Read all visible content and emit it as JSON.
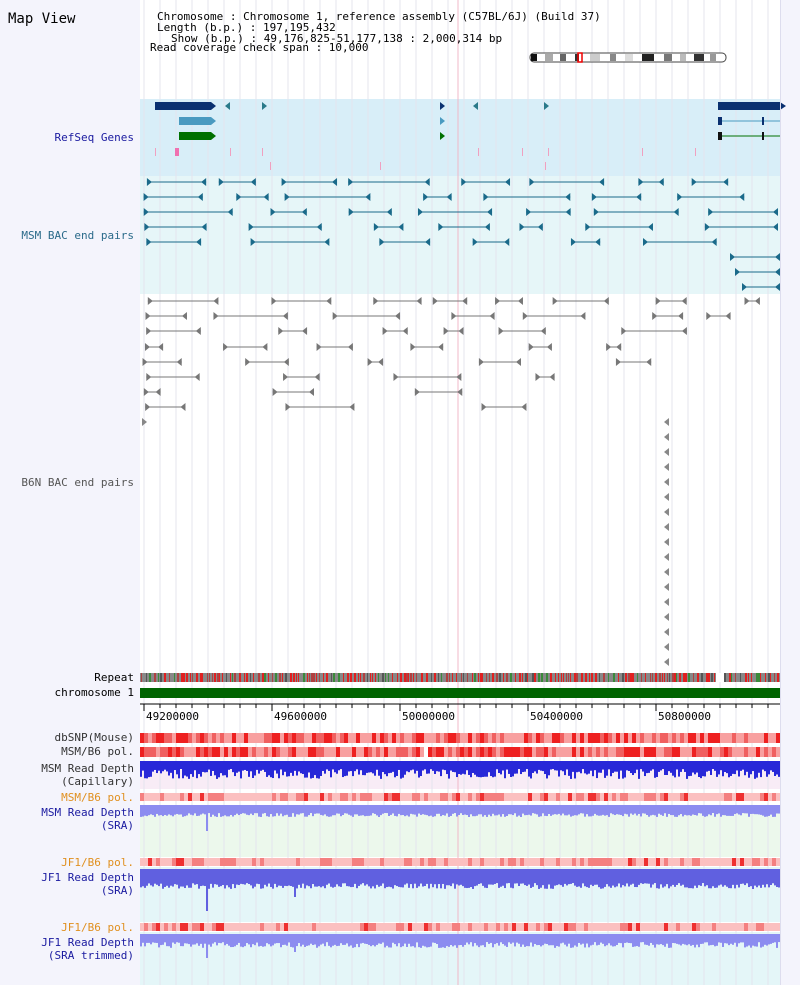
{
  "title": "Map View",
  "header": {
    "chromosome_line": "Chromosome    : Chromosome 1, reference assembly (C57BL/6J) (Build 37)",
    "length_line": "Length (b.p.) : 197,195,432",
    "show_line": "Show (b.p.) : 49,176,825-51,177,138 : 2,000,314 bp",
    "coverage_line": "Read coverage check span : 10,000"
  },
  "tracks": {
    "refseq": "RefSeq Genes",
    "msm_bac": "MSM BAC end pairs",
    "b6n_bac": "B6N BAC end pairs",
    "repeat": "Repeat",
    "chromosome": "chromosome 1",
    "dbsnp": "dbSNP(Mouse)",
    "msm_b6_pol_1": "MSM/B6 pol.",
    "msm_depth_cap_1": "MSM Read Depth",
    "msm_depth_cap_2": "(Capillary)",
    "msm_b6_pol_2": "MSM/B6 pol.",
    "msm_depth_sra_1": "MSM Read Depth",
    "msm_depth_sra_2": "(SRA)",
    "jf1_b6_pol_1": "JF1/B6 pol.",
    "jf1_depth_sra_1": "JF1 Read Depth",
    "jf1_depth_sra_2": "(SRA)",
    "jf1_b6_pol_2": "JF1/B6 pol.",
    "jf1_depth_trim_1": "JF1 Read Depth",
    "jf1_depth_trim_2": "(SRA trimmed)"
  },
  "axis_ticks": [
    "49200000",
    "49600000",
    "50000000",
    "50400000",
    "50800000"
  ],
  "colors": {
    "refseq_label": "#1a1aa0",
    "msm_label": "#2a6a8a",
    "b6n_label": "#555555",
    "pol_orange": "#e09020",
    "depth_blue": "#2020c0",
    "chromosome_green": "#006400"
  }
}
